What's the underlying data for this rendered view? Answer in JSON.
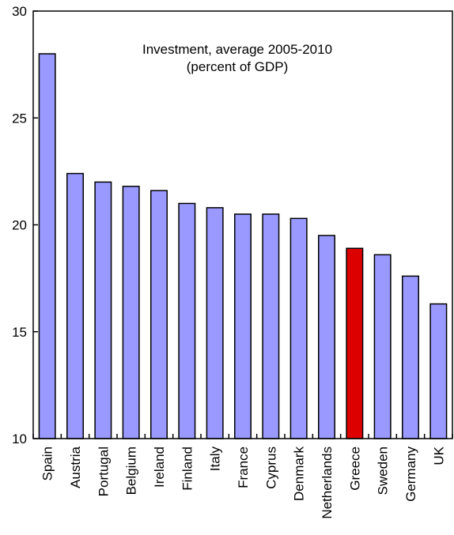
{
  "chart_data": {
    "type": "bar",
    "title": "Investment, average 2005-2010",
    "subtitle": "(percent of GDP)",
    "xlabel": "",
    "ylabel": "",
    "ylim": [
      10,
      30
    ],
    "yticks": [
      "10",
      "15",
      "20",
      "25",
      "30"
    ],
    "grid": false,
    "categories": [
      "Spain",
      "Austria",
      "Portugal",
      "Belgium",
      "Ireland",
      "Finland",
      "Italy",
      "France",
      "Cyprus",
      "Denmark",
      "Netherlands",
      "Greece",
      "Sweden",
      "Germany",
      "UK"
    ],
    "values": [
      28.0,
      22.4,
      22.0,
      21.8,
      21.6,
      21.0,
      20.8,
      20.5,
      20.5,
      20.3,
      19.5,
      18.9,
      18.6,
      17.6,
      16.3
    ],
    "colors": {
      "default_bar": "#9999ff",
      "highlight_bar": "#dd0000",
      "bar_outline": "#000000"
    },
    "highlight": "Greece"
  }
}
